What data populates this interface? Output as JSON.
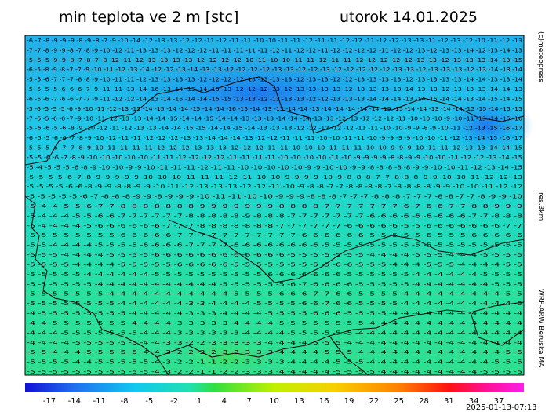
{
  "header": {
    "title": "min teplota ve 2 m [stc]",
    "date": "utorok 14.01.2025"
  },
  "side": {
    "copyright": "(c)meteopress",
    "resolution": "res.3km",
    "model": "WRF-ARW Beruska MA"
  },
  "footer": {
    "timestamp": "2025-01-13-07:13"
  },
  "colorbar": {
    "labels": [
      "-17",
      "-14",
      "-11",
      "-8",
      "-5",
      "-2",
      "1",
      "4",
      "7",
      "10",
      "13",
      "16",
      "19",
      "22",
      "25",
      "28",
      "31",
      "34",
      "37"
    ]
  },
  "grid": {
    "rows": [
      "-6 -7 -8 -9 -9 -9 -8 -9 -8 -7 -9 -10 -14 -12 -13 -13 -12 -12 -11 -12 -11 -11 -10 -10 -11 -11 -12 -11 -11 -12 -12 -11 -12 -12 -13 -13 -11 -12 -13 -12 -10 -11 -12 -13",
      "-7 -7 -8 -9 -9 -8 -7 -8 -9 -10 -12 -11 -13 -13 -13 -12 -12 -12 -11 -11 -11 -11 -11 -12 -11 -12 -12 -11 -12 -12 -12 -12 -11 -12 -12 -13 -12 -13 -13 -14 -12 -13 -14 -13",
      "-5 -5 -5 -9 -9 -8 -7 -8 -7 -8 -12 -11 -12 -13 -13 -13 -13 -12 -12 -12 -12 -10 -11 -10 -10 -11 -11 -12 -11 -11 -12 -12 -12 -12 -12 -13 -13 -12 -13 -13 -13 -14 -13 -15",
      "-6 -5 -8 -9 -8 -7 -7 -9 -10 -11 -12 -13 -14 -12 -12 -13 -14 -13 -13 -12 -12 -12 -12 -13 -13 -12 -12 -13 -12 -12 -12 -12 -12 -13 -13 -12 -13 -13 -13 -12 -13 -14 -13 -14",
      "-5 -5 -6 -7 -7 -7 -8 -8 -9 -10 -11 -11 -12 -13 -13 -13 -13 -12 -12 -12 -12 -13 -13 -13 -13 -12 -13 -13 -12 -12 -13 -13 -13 -13 -12 -13 -13 -13 -13 -14 -14 -13 -13 -14",
      "-5 -5 -5 -5 -6 -6 -6 -7 -9 -11 -11 -13 -14 -16 -13 -14 -15 -14 -13 -13 -12 -12 -12 -13 -12 -13 -13 -13 -13 -12 -13 -13 -13 -13 -14 -13 -13 -12 -13 -13 -13 -14 -14 -13",
      "-6 -5 -6 -7 -6 -6 -7 -7 -9 -11 -12 -12 -14 -13 -14 -15 -14 -14 -16 -15 -13 -13 -12 -13 -13 -13 -12 -12 -13 -13 -13 -14 -14 -14 -13 -14 -15 -14 -14 -13 -14 -15 -14 -15",
      "-5 -6 -5 -5 -5 -6 -9 -10 -11 -12 -13 -15 -14 -15 -14 -14 -15 -14 -14 -16 -15 -14 -13 -13 -14 -14 -13 -14 -14 -14 -14 -14 -15 -15 -14 -14 -13 -14 -14 -15 -15 -14 -15 -15",
      "-7 -6 -5 -6 -6 -7 -9 -10 -11 -12 -13 -13 -14 -14 -15 -14 -14 -15 -14 -14 -13 -13 -13 -14 -14 -14 -13 -13 -12 -13 -12 -12 -12 -11 -10 -10 -10 -9 -10 -11 -13 -14 -15 -16",
      "-5 -6 -6 -5 -6 -8 -9 -10 -12 -11 -12 -13 -13 -14 -14 -15 -15 -14 -14 -15 -14 -13 -13 -13 -12 -12 -12 -12 -12 -11 -11 -10 -10 -9 -9 -8 -9 -10 -11 -12 -13 -15 -16 -17",
      "-6 -5 -5 -6 -6 -7 -8 -9 -10 -12 -11 -11 -12 -12 -12 -13 -13 -14 -14 -14 -13 -12 -12 -11 -11 -11 -10 -10 -11 -11 -10 -9 -9 -9 -9 -10 -10 -11 -12 -13 -14 -15 -16 -17",
      "-5 -5 -5 -6 -7 -7 -8 -9 -10 -11 -11 -11 -11 -12 -12 -12 -13 -13 -13 -12 -12 -12 -11 -11 -10 -10 -10 -11 -11 -11 -10 -10 -9 -9 -9 -10 -11 -11 -12 -13 -13 -14 -14 -15",
      "-5 -5 -6 -6 -7 -8 -9 -10 -10 -10 -10 -10 -11 -11 -12 -12 -12 -12 -11 -11 -11 -11 -10 -10 -10 -10 -11 -10 -9 -9 -9 -9 -8 -8 -9 -9 -10 -10 -11 -12 -12 -13 -14 -15",
      "-5 -4 -5 -5 -5 -6 -8 -9 -10 -10 -9 -9 -10 -11 -11 -11 -12 -11 -11 -10 -10 -10 -10 -10 -9 -9 -10 -10 -9 -9 -8 -8 -8 -8 -8 -9 -9 -10 -10 -11 -12 -13 -14 -15",
      "-5 -5 -5 -5 -6 -7 -8 -9 -9 -9 -9 -9 -10 -10 -10 -11 -11 -11 -12 -11 -10 -10 -9 -9 -9 -9 -10 -9 -8 -8 -8 -7 -7 -8 -8 -8 -9 -9 -10 -10 -11 -12 -12 -13",
      "-5 -5 -5 -5 -6 -6 -8 -9 -9 -8 -8 -9 -9 -10 -11 -12 -13 -13 -13 -12 -12 -11 -10 -9 -8 -8 -7 -7 -8 -8 -8 -8 -7 -8 -8 -8 -8 -9 -9 -10 -10 -11 -12 -12",
      "-5 -5 -5 -5 -5 -6 -7 -8 -8 -8 -9 -9 -8 -9 -9 -9 -10 -11 -11 -10 -10 -9 -9 -9 -8 -8 -8 -7 -7 -7 -8 -8 -8 -7 -7 -7 -8 -8 -7 -7 -8 -9 -9 -10",
      "-5 -4 -4 -5 -5 -6 -7 -7 -8 -8 -8 -8 -8 -8 -8 -9 -9 -9 -9 -9 -9 -9 -8 -8 -8 -8 -7 -7 -7 -7 -7 -7 -7 -6 -7 -6 -6 -7 -7 -8 -8 -9 -9 -9",
      "-5 -4 -4 -4 -5 -5 -6 -6 -7 -7 -7 -7 -7 -7 -8 -8 -8 -8 -8 -9 -8 -8 -8 -7 -7 -7 -7 -7 -7 -7 -6 -6 -6 -6 -6 -6 -6 -6 -6 -7 -7 -8 -8 -8",
      "-5 -4 -4 -4 -4 -5 -6 -6 -6 -6 -6 -6 -7 -7 -7 -8 -8 -8 -8 -8 -8 -8 -7 -7 -7 -7 -7 -7 -6 -6 -6 -6 -6 -5 -5 -6 -6 -6 -6 -6 -6 -6 -7 -7",
      "-5 -5 -5 -5 -5 -5 -5 -5 -6 -6 -6 -6 -6 -7 -7 -7 -7 -7 -7 -7 -7 -7 -7 -7 -6 -6 -6 -6 -6 -6 -5 -5 -5 -5 -5 -6 -5 -5 -5 -6 -6 -6 -6 -6",
      "-5 -5 -4 -4 -4 -4 -5 -5 -5 -5 -6 -6 -6 -6 -7 -7 -7 -7 -6 -6 -6 -6 -6 -6 -6 -6 -5 -5 -5 -5 -5 -5 -5 -5 -5 -5 -5 -5 -5 -5 -5 -5 -5 -5",
      "-5 -5 -5 -4 -4 -4 -4 -5 -5 -5 -5 -6 -6 -6 -6 -6 -6 -6 -6 -6 -6 -6 -6 -5 -5 -5 -5 -5 -5 -5 -4 -4 -4 -4 -5 -5 -5 -4 -4 -4 -5 -5 -5 -5",
      "-5 -5 -5 -5 -4 -4 -4 -4 -5 -5 -5 -5 -5 -6 -6 -6 -6 -6 -5 -5 -5 -5 -5 -5 -5 -5 -5 -6 -6 -5 -5 -5 -4 -4 -4 -5 -5 -5 -4 -4 -4 -4 -5 -5",
      "-5 -5 -5 -5 -5 -4 -4 -4 -4 -4 -4 -5 -5 -5 -5 -5 -5 -5 -5 -5 -5 -6 -6 -6 -6 -6 -6 -6 -5 -5 -5 -5 -5 -5 -4 -4 -4 -4 -4 -4 -5 -5 -5 -5",
      "-5 -5 -5 -5 -5 -5 -4 -4 -4 -4 -4 -4 -4 -4 -4 -4 -4 -5 -5 -5 -5 -5 -5 -6 -7 -6 -6 -6 -6 -5 -5 -5 -5 -5 -4 -4 -4 -4 -4 -4 -4 -5 -5 -5",
      "-5 -5 -5 -5 -5 -5 -5 -4 -4 -4 -4 -4 -4 -4 -4 -4 -4 -4 -5 -5 -5 -5 -6 -6 -6 -7 -7 -6 -6 -5 -5 -5 -5 -4 -4 -4 -4 -4 -4 -4 -4 -4 -5 -5",
      "-5 -5 -5 -5 -5 -5 -5 -5 -4 -4 -4 -4 -4 -4 -3 -3 -4 -4 -4 -4 -5 -5 -5 -5 -6 -6 -7 -6 -6 -5 -5 -5 -5 -4 -4 -4 -4 -4 -4 -4 -4 -4 -4 -5",
      "-4 -5 -5 -5 -5 -5 -5 -5 -5 -4 -4 -4 -4 -4 -3 -3 -3 -4 -4 -4 -4 -5 -5 -5 -5 -6 -6 -6 -5 -5 -5 -5 -4 -4 -4 -4 -4 -4 -4 -4 -4 -4 -4 -4",
      "-4 -4 -5 -5 -5 -5 -5 -5 -5 -4 -4 -4 -4 -3 -3 -3 -3 -3 -4 -4 -4 -4 -5 -5 -5 -5 -5 -5 -5 -5 -4 -4 -4 -4 -4 -4 -4 -4 -4 -4 -4 -4 -4 -4",
      "-4 -4 -4 -5 -5 -5 -5 -5 -5 -5 -4 -4 -4 -3 -3 -3 -3 -3 -3 -4 -4 -4 -4 -5 -5 -5 -5 -5 -5 -4 -4 -4 -4 -4 -4 -4 -4 -4 -4 -4 -4 -4 -4 -4",
      "-4 -4 -4 -4 -5 -5 -5 -5 -5 -5 -4 -4 -3 -3 -2 -2 -3 -3 -3 -3 -3 -4 -4 -4 -4 -5 -5 -5 -4 -4 -4 -4 -4 -4 -4 -4 -4 -4 -4 -4 -4 -4 -4 -4",
      "-5 -5 -4 -4 -4 -5 -5 -5 -5 -5 -4 -4 -3 -2 -2 -2 -2 -3 -3 -3 -3 -3 -4 -4 -4 -4 -5 -5 -5 -4 -4 -4 -4 -4 -4 -4 -4 -4 -4 -4 -4 -4 -5 -5",
      "-5 -5 -5 -5 -4 -4 -5 -5 -5 -5 -5 -4 -3 -2 -2 -1 -1 -2 -2 -3 -3 -3 -3 -4 -4 -4 -4 -5 -5 -5 -4 -4 -4 -4 -4 -4 -4 -4 -4 -4 -4 -5 -5 -5",
      "-5 -5 -5 -5 -5 -5 -5 -5 -5 -5 -5 -4 -3 -2 -2 -1 -1 -2 -2 -3 -3 -3 -4 -4 -4 -4 -4 -5 -5 -5 -5 -4 -4 -4 -4 -4 -4 -4 -4 -4 -5 -5 -5 -5"
    ]
  }
}
